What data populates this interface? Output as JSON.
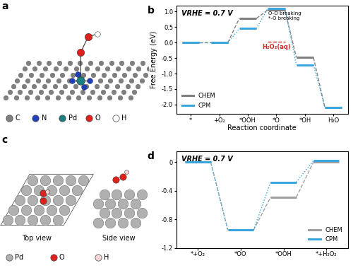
{
  "panels": [
    {
      "panel": "a",
      "type": "structure",
      "atoms": [
        {
          "symbol": "C",
          "color": "#7f7f7f"
        },
        {
          "symbol": "N",
          "color": "#1f3fbf"
        },
        {
          "symbol": "Pd",
          "color": "#1a7f7f"
        },
        {
          "symbol": "O",
          "color": "#e0201b"
        },
        {
          "symbol": "H",
          "color": "#ffffff"
        }
      ]
    },
    {
      "panel": "c",
      "type": "structure",
      "views": [
        "Top view",
        "Side view"
      ],
      "atoms": [
        {
          "symbol": "Pd",
          "color": "#b0b0b0"
        },
        {
          "symbol": "O",
          "color": "#e0201b"
        },
        {
          "symbol": "H",
          "color": "#f5d5d5"
        }
      ]
    }
  ],
  "chart_data": [
    {
      "panel": "b",
      "type": "energy_diagram",
      "title": "VRHE = 0.7 V",
      "y_label": "Free Energy (eV)",
      "x_label": "Reaction coordinate",
      "categories": [
        "*",
        "+O₂",
        "*OOH",
        "*O",
        "*OH",
        "H₂O"
      ],
      "series": [
        {
          "name": "CHEM",
          "color": "#808080",
          "line_style": "dashed",
          "values": [
            0.0,
            0.0,
            0.78,
            1.05,
            -0.48,
            -2.1
          ]
        },
        {
          "name": "CPM",
          "color": "#3aa6dd",
          "line_style": "dotted",
          "values": [
            0.0,
            0.0,
            0.45,
            1.1,
            -0.72,
            -2.1
          ]
        }
      ],
      "annotations": [
        {
          "text": "O-O breaking",
          "category": "*O"
        },
        {
          "text": "*-O breaking",
          "category": "*O"
        },
        {
          "text": "H₂O₂(aq)",
          "category": "*O",
          "value": 0.02,
          "color": "#d62728"
        }
      ],
      "ylim": [
        -2.3,
        1.2
      ],
      "yticks": [
        -2.0,
        -1.5,
        -1.0,
        -0.5,
        0.0,
        0.5,
        1.0
      ],
      "legend": "lower left"
    },
    {
      "panel": "d",
      "type": "energy_diagram",
      "title": "VRHE = 0.7 V",
      "categories": [
        "*+O₂",
        "*OO",
        "*OOH",
        "*+H₂O₂"
      ],
      "series": [
        {
          "name": "CHEM",
          "color": "#a0a0a0",
          "line_style": "dashed",
          "values": [
            0.0,
            -0.95,
            -0.49,
            0.0
          ]
        },
        {
          "name": "CPM",
          "color": "#3aa6dd",
          "line_style": "dotted",
          "values": [
            0.0,
            -0.95,
            -0.28,
            0.02
          ]
        }
      ],
      "ylim": [
        -1.2,
        0.15
      ],
      "yticks": [
        -1.2,
        -0.8,
        -0.4,
        0
      ],
      "legend": "lower right"
    }
  ]
}
